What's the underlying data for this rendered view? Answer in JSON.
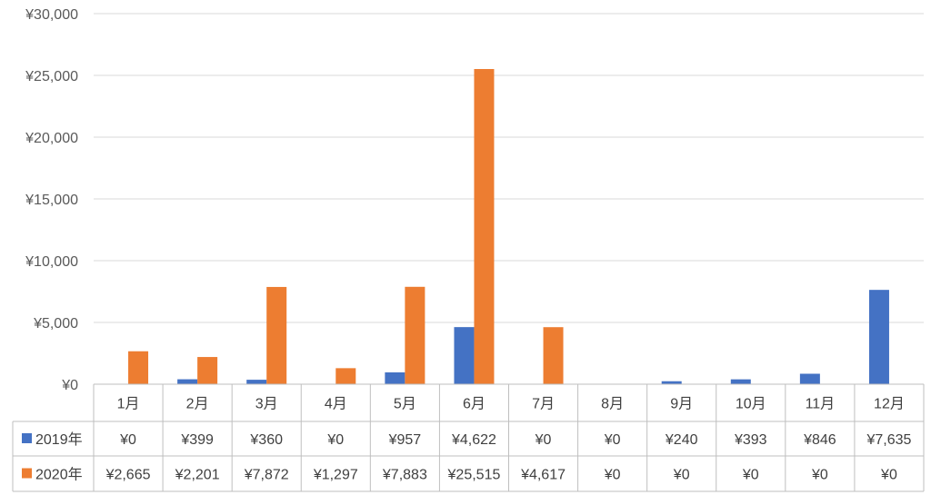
{
  "chart_data": {
    "type": "bar",
    "categories": [
      "1月",
      "2月",
      "3月",
      "4月",
      "5月",
      "6月",
      "7月",
      "8月",
      "9月",
      "10月",
      "11月",
      "12月"
    ],
    "series": [
      {
        "name": "2019年",
        "color": "#4472C4",
        "values": [
          0,
          399,
          360,
          0,
          957,
          4622,
          0,
          0,
          240,
          393,
          846,
          7635
        ],
        "labels": [
          "¥0",
          "¥399",
          "¥360",
          "¥0",
          "¥957",
          "¥4,622",
          "¥0",
          "¥0",
          "¥240",
          "¥393",
          "¥846",
          "¥7,635"
        ]
      },
      {
        "name": "2020年",
        "color": "#ED7D31",
        "values": [
          2665,
          2201,
          7872,
          1297,
          7883,
          25515,
          4617,
          0,
          0,
          0,
          0,
          0
        ],
        "labels": [
          "¥2,665",
          "¥2,201",
          "¥7,872",
          "¥1,297",
          "¥7,883",
          "¥25,515",
          "¥4,617",
          "¥0",
          "¥0",
          "¥0",
          "¥0",
          "¥0"
        ]
      }
    ],
    "y_ticks": [
      0,
      5000,
      10000,
      15000,
      20000,
      25000,
      30000
    ],
    "y_tick_labels": [
      "¥0",
      "¥5,000",
      "¥10,000",
      "¥15,000",
      "¥20,000",
      "¥25,000",
      "¥30,000"
    ],
    "ylim": [
      0,
      30000
    ],
    "grid": true,
    "legend": "data-table"
  }
}
